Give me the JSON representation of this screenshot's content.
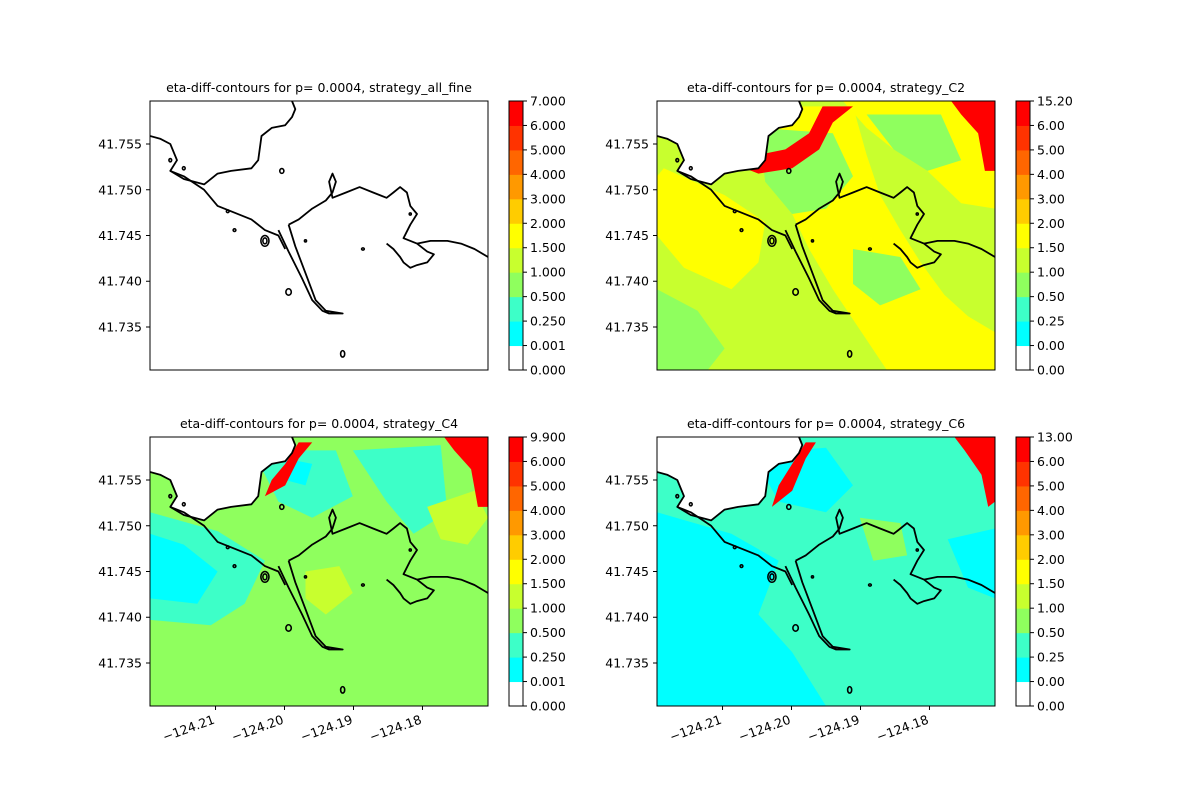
{
  "figure": {
    "panels": [
      {
        "id": "all_fine",
        "title": "eta-diff-contours for p= 0.0004, strategy_all_fine",
        "colorbar_ticks": [
          "0.000",
          "0.001",
          "0.250",
          "0.500",
          "1.000",
          "1.500",
          "2.000",
          "3.000",
          "4.000",
          "5.000",
          "6.000",
          "7.000"
        ],
        "show_yticks": true,
        "show_xticks": false,
        "fill": false
      },
      {
        "id": "C2",
        "title": "eta-diff-contours for p= 0.0004, strategy_C2",
        "colorbar_ticks": [
          "0.00",
          "0.00",
          "0.25",
          "0.50",
          "1.00",
          "1.50",
          "2.00",
          "3.00",
          "4.00",
          "5.00",
          "6.00",
          "15.20"
        ],
        "show_yticks": true,
        "show_xticks": false,
        "fill": true
      },
      {
        "id": "C4",
        "title": "eta-diff-contours for p= 0.0004, strategy_C4",
        "colorbar_ticks": [
          "0.000",
          "0.001",
          "0.250",
          "0.500",
          "1.000",
          "1.500",
          "2.000",
          "3.000",
          "4.000",
          "5.000",
          "6.000",
          "9.900"
        ],
        "show_yticks": true,
        "show_xticks": true,
        "fill": true
      },
      {
        "id": "C6",
        "title": "eta-diff-contours for p= 0.0004, strategy_C6",
        "colorbar_ticks": [
          "0.00",
          "0.00",
          "0.25",
          "0.50",
          "1.00",
          "1.50",
          "2.00",
          "3.00",
          "4.00",
          "5.00",
          "6.00",
          "13.00"
        ],
        "show_yticks": true,
        "show_xticks": true,
        "fill": true
      }
    ],
    "colorbar_colors": [
      "#ffffff",
      "#00ffff",
      "#3dffc8",
      "#8fff5e",
      "#c8ff2e",
      "#ffff00",
      "#ffcc00",
      "#ff9900",
      "#ff6600",
      "#ff3300",
      "#ff0000"
    ],
    "coastline_color": "#000000"
  },
  "chart_data": [
    {
      "type": "heatmap",
      "title": "eta-diff-contours for p= 0.0004, strategy_all_fine",
      "xlim": [
        -124.2195,
        -124.1705
      ],
      "ylim": [
        41.7303,
        41.7597
      ],
      "xticks": [
        "−124.21",
        "−124.20",
        "−124.19",
        "−124.18"
      ],
      "xtick_values": [
        -124.21,
        -124.2,
        -124.19,
        -124.18
      ],
      "yticks": [
        "41.735",
        "41.740",
        "41.745",
        "41.750",
        "41.755"
      ],
      "ytick_values": [
        41.735,
        41.74,
        41.745,
        41.75,
        41.755
      ],
      "levels": [
        0.0,
        0.001,
        0.25,
        0.5,
        1.0,
        1.5,
        2.0,
        3.0,
        4.0,
        5.0,
        6.0,
        7.0
      ],
      "dominant_level": "none (all values ~0)"
    },
    {
      "type": "heatmap",
      "title": "eta-diff-contours for p= 0.0004, strategy_C2",
      "levels": [
        0.0,
        0.0,
        0.25,
        0.5,
        1.0,
        1.5,
        2.0,
        3.0,
        4.0,
        5.0,
        6.0,
        15.2
      ],
      "dominant_level": "1.0-2.0, with values >3 near the northern coast and north-east corner"
    },
    {
      "type": "heatmap",
      "title": "eta-diff-contours for p= 0.0004, strategy_C4",
      "levels": [
        0.0,
        0.001,
        0.25,
        0.5,
        1.0,
        1.5,
        2.0,
        3.0,
        4.0,
        5.0,
        6.0,
        9.9
      ],
      "dominant_level": "0.25-1.0, with values >3 near the northern coast and north-east corner"
    },
    {
      "type": "heatmap",
      "title": "eta-diff-contours for p= 0.0004, strategy_C6",
      "levels": [
        0.0,
        0.0,
        0.25,
        0.5,
        1.0,
        1.5,
        2.0,
        3.0,
        4.0,
        5.0,
        6.0,
        13.0
      ],
      "dominant_level": "0.001-0.5, with values >3 near the northern coast and north-east corner"
    }
  ]
}
